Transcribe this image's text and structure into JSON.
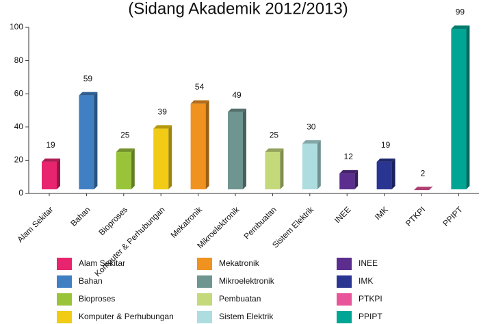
{
  "chart_data": {
    "type": "bar3d",
    "title": "(Sidang Akademik 2012/2013)",
    "categories": [
      "Alam Sekitar",
      "Bahan",
      "Bioproses",
      "Komputer & Perhubungan",
      "Mekatronik",
      "Mikroelektronik",
      "Pembuatan",
      "Sistem Elektrik",
      "INEE",
      "IMK",
      "PTKPI",
      "PPIPT"
    ],
    "values": [
      19,
      59,
      25,
      39,
      54,
      49,
      25,
      30,
      12,
      19,
      2,
      99
    ],
    "colors": [
      "#e8246e",
      "#3f7fc2",
      "#99c43a",
      "#f1cb14",
      "#f0921f",
      "#6e9590",
      "#c4d97a",
      "#aedde0",
      "#5b2d8e",
      "#2a3591",
      "#e9559a",
      "#00a693"
    ],
    "ylim": [
      0,
      100
    ],
    "yticks": [
      0,
      20,
      40,
      60,
      80,
      100
    ],
    "grid": false,
    "legend": "bottom"
  }
}
